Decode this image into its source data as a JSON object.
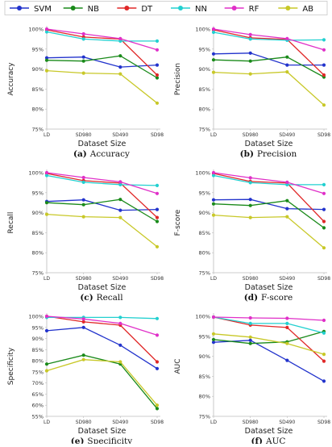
{
  "legend": {
    "placement": "top",
    "entries": [
      {
        "name": "SVM",
        "color": "#2233cc"
      },
      {
        "name": "NB",
        "color": "#1a8a1a"
      },
      {
        "name": "DT",
        "color": "#e02828"
      },
      {
        "name": "NN",
        "color": "#22d0d0"
      },
      {
        "name": "RF",
        "color": "#e030c8"
      },
      {
        "name": "AB",
        "color": "#c8c828"
      }
    ]
  },
  "chart_data": [
    {
      "type": "line",
      "panel_letter": "(a)",
      "caption": "Accuracy",
      "xlabel": "Dataset Size",
      "ylabel": "Accuracy",
      "categories": [
        "LD",
        "SD980",
        "SD490",
        "SD98"
      ],
      "ylim": [
        75,
        100
      ],
      "yticks": [
        "75%",
        "80%",
        "85%",
        "90%",
        "95%",
        "100%"
      ],
      "grid": false,
      "series": [
        {
          "name": "SVM",
          "values": [
            92.8,
            93.0,
            90.5,
            91.0
          ]
        },
        {
          "name": "NB",
          "values": [
            92.2,
            92.0,
            93.3,
            87.8
          ]
        },
        {
          "name": "DT",
          "values": [
            99.8,
            98.0,
            97.5,
            88.5
          ]
        },
        {
          "name": "NN",
          "values": [
            99.3,
            97.5,
            97.0,
            97.0
          ]
        },
        {
          "name": "RF",
          "values": [
            100,
            98.8,
            97.6,
            94.8
          ]
        },
        {
          "name": "AB",
          "values": [
            89.6,
            89.0,
            88.8,
            81.5
          ]
        }
      ]
    },
    {
      "type": "line",
      "panel_letter": "(b)",
      "caption": "Precision",
      "xlabel": "Dataset Size",
      "ylabel": "Precision",
      "categories": [
        "LD",
        "SD980",
        "SD490",
        "SD98"
      ],
      "ylim": [
        75,
        100
      ],
      "yticks": [
        "75%",
        "80%",
        "85%",
        "90%",
        "95%",
        "100%"
      ],
      "grid": false,
      "series": [
        {
          "name": "SVM",
          "values": [
            93.8,
            94.0,
            91.0,
            91.0
          ]
        },
        {
          "name": "NB",
          "values": [
            92.3,
            92.0,
            93.0,
            88.0
          ]
        },
        {
          "name": "DT",
          "values": [
            99.8,
            97.8,
            97.4,
            88.5
          ]
        },
        {
          "name": "NN",
          "values": [
            99.2,
            97.5,
            97.2,
            97.3
          ]
        },
        {
          "name": "RF",
          "values": [
            100,
            98.6,
            97.6,
            94.8
          ]
        },
        {
          "name": "AB",
          "values": [
            89.2,
            88.8,
            89.3,
            81.0
          ]
        }
      ]
    },
    {
      "type": "line",
      "panel_letter": "(c)",
      "caption": "Recall",
      "xlabel": "Dataset Size",
      "ylabel": "Recall",
      "categories": [
        "LD",
        "SD980",
        "SD490",
        "SD98"
      ],
      "ylim": [
        75,
        100
      ],
      "yticks": [
        "75%",
        "80%",
        "85%",
        "90%",
        "95%",
        "100%"
      ],
      "grid": false,
      "series": [
        {
          "name": "SVM",
          "values": [
            92.8,
            93.2,
            90.6,
            90.8
          ]
        },
        {
          "name": "NB",
          "values": [
            92.5,
            92.0,
            93.3,
            87.8
          ]
        },
        {
          "name": "DT",
          "values": [
            99.8,
            98.0,
            97.4,
            88.8
          ]
        },
        {
          "name": "NN",
          "values": [
            99.3,
            97.6,
            97.0,
            96.8
          ]
        },
        {
          "name": "RF",
          "values": [
            100,
            98.8,
            97.7,
            94.8
          ]
        },
        {
          "name": "AB",
          "values": [
            89.6,
            89.0,
            88.8,
            81.5
          ]
        }
      ]
    },
    {
      "type": "line",
      "panel_letter": "(d)",
      "caption": "F-score",
      "xlabel": "Dataset Size",
      "ylabel": "F-score",
      "categories": [
        "LD",
        "SD980",
        "SD490",
        "SD98"
      ],
      "ylim": [
        75,
        100
      ],
      "yticks": [
        "75%",
        "80%",
        "85%",
        "90%",
        "95%",
        "100%"
      ],
      "grid": false,
      "series": [
        {
          "name": "SVM",
          "values": [
            93.2,
            93.3,
            91.0,
            90.8
          ]
        },
        {
          "name": "NB",
          "values": [
            92.2,
            91.8,
            93.0,
            86.2
          ]
        },
        {
          "name": "DT",
          "values": [
            99.8,
            97.8,
            97.4,
            87.8
          ]
        },
        {
          "name": "NN",
          "values": [
            99.3,
            97.5,
            97.0,
            97.0
          ]
        },
        {
          "name": "RF",
          "values": [
            100,
            98.7,
            97.6,
            94.8
          ]
        },
        {
          "name": "AB",
          "values": [
            89.4,
            88.8,
            89.0,
            81.2
          ]
        }
      ]
    },
    {
      "type": "line",
      "panel_letter": "(e)",
      "caption": "Specificity",
      "xlabel": "Dataset Size",
      "ylabel": "Specificity",
      "categories": [
        "LD",
        "SD980",
        "SD490",
        "SD98"
      ],
      "ylim": [
        55,
        100
      ],
      "yticks": [
        "55%",
        "60%",
        "65%",
        "70%",
        "75%",
        "80%",
        "85%",
        "90%",
        "95%",
        "100%"
      ],
      "grid": false,
      "series": [
        {
          "name": "SVM",
          "values": [
            93.5,
            95.0,
            87.0,
            76.5
          ]
        },
        {
          "name": "NB",
          "values": [
            78.5,
            82.5,
            78.5,
            58.5
          ]
        },
        {
          "name": "DT",
          "values": [
            100,
            97.5,
            96.0,
            79.5
          ]
        },
        {
          "name": "NN",
          "values": [
            99.5,
            99.5,
            99.5,
            99.0
          ]
        },
        {
          "name": "RF",
          "values": [
            100,
            98.8,
            96.8,
            91.5
          ]
        },
        {
          "name": "AB",
          "values": [
            75.5,
            80.5,
            79.5,
            60.0
          ]
        }
      ]
    },
    {
      "type": "line",
      "panel_letter": "(f)",
      "caption": "AUC",
      "xlabel": "Dataset Size",
      "ylabel": "AUC",
      "categories": [
        "LD",
        "SD980",
        "SD490",
        "SD98"
      ],
      "ylim": [
        75,
        100
      ],
      "yticks": [
        "75%",
        "80%",
        "85%",
        "90%",
        "95%",
        "100%"
      ],
      "grid": false,
      "series": [
        {
          "name": "SVM",
          "values": [
            93.5,
            94.0,
            89.0,
            83.8
          ]
        },
        {
          "name": "NB",
          "values": [
            94.2,
            93.2,
            93.6,
            96.2
          ]
        },
        {
          "name": "DT",
          "values": [
            99.8,
            97.8,
            97.2,
            88.8
          ]
        },
        {
          "name": "NN",
          "values": [
            99.8,
            98.2,
            98.2,
            95.8
          ]
        },
        {
          "name": "RF",
          "values": [
            99.8,
            99.6,
            99.5,
            99.0
          ]
        },
        {
          "name": "AB",
          "values": [
            95.6,
            94.8,
            93.2,
            90.5
          ]
        }
      ]
    }
  ]
}
